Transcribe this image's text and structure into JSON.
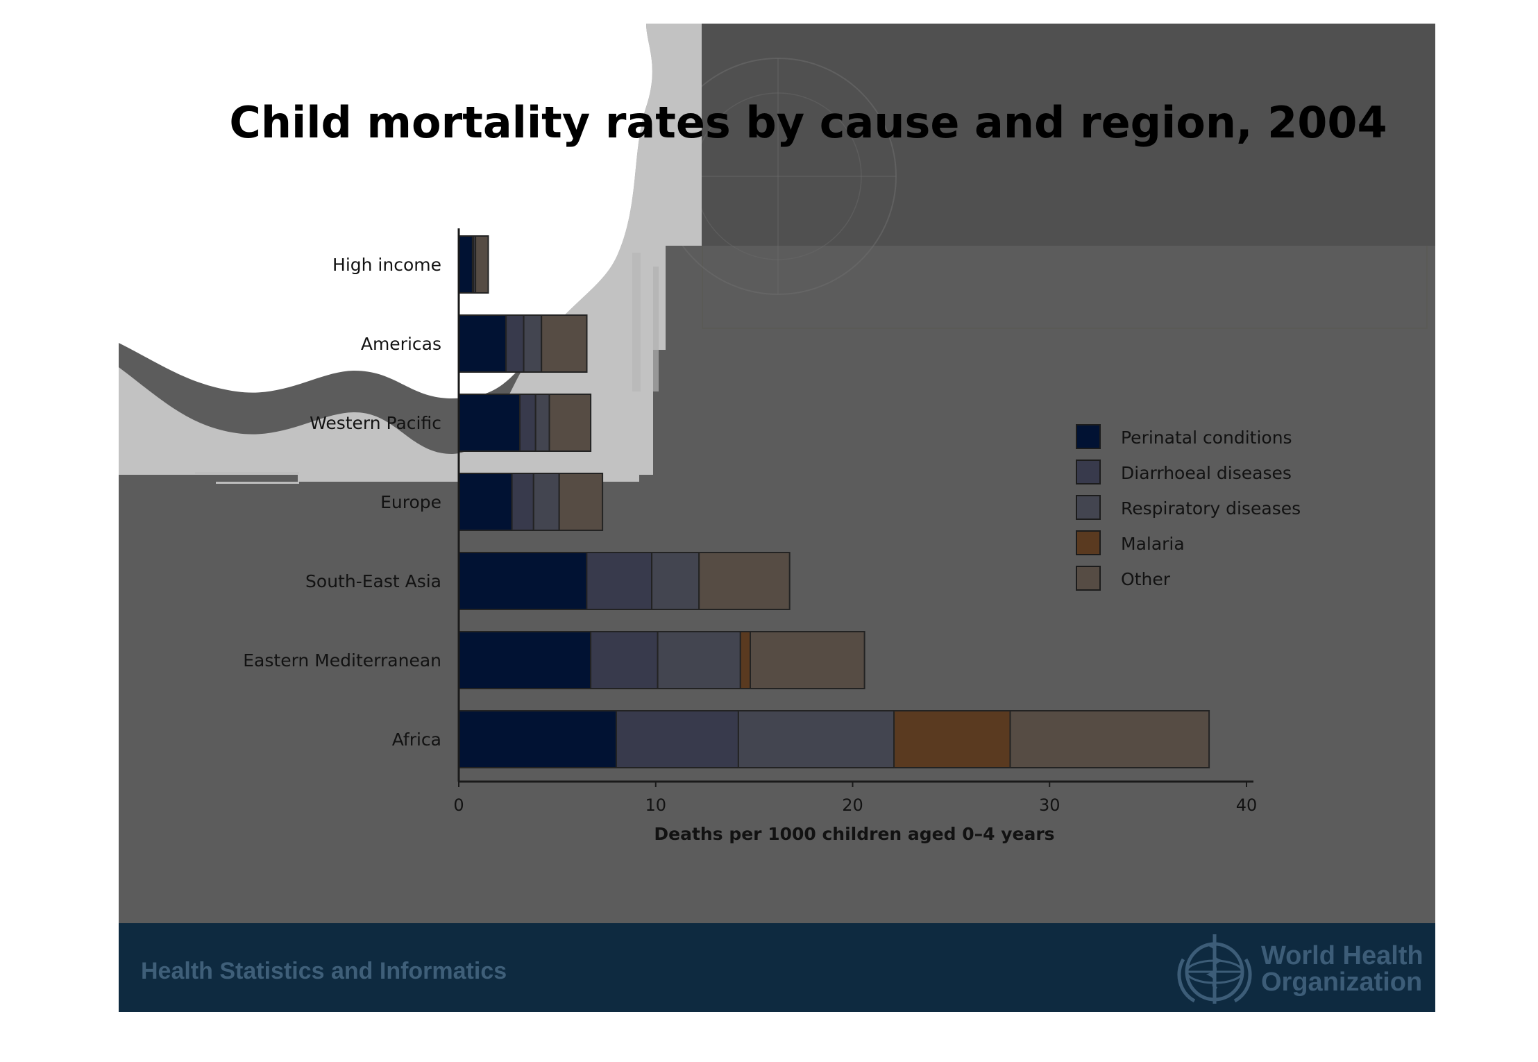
{
  "slide": {
    "title": "Child mortality rates by cause and region, 2004",
    "footer_text": "Health Statistics and Informatics",
    "org_name_line1": "World Health",
    "org_name_line2": "Organization",
    "colors": {
      "background": "#5c5c5c",
      "footer": "#0e2a40",
      "footer_text": "#3f5f79"
    }
  },
  "chart_data": {
    "type": "bar",
    "orientation": "horizontal",
    "stacked": true,
    "categories": [
      "High income",
      "Americas",
      "Western Pacific",
      "Europe",
      "South-East Asia",
      "Eastern Mediterranean",
      "Africa"
    ],
    "series": [
      {
        "name": "Perinatal conditions",
        "color": "#011233",
        "values": [
          0.7,
          2.4,
          3.1,
          2.7,
          6.5,
          6.7,
          8.0
        ]
      },
      {
        "name": "Diarrhoeal diseases",
        "color": "#383a4c",
        "values": [
          0.05,
          0.9,
          0.8,
          1.1,
          3.3,
          3.4,
          6.2
        ]
      },
      {
        "name": "Respiratory diseases",
        "color": "#434550",
        "values": [
          0.1,
          0.9,
          0.7,
          1.3,
          2.4,
          4.2,
          7.9
        ]
      },
      {
        "name": "Malaria",
        "color": "#5a3a20",
        "values": [
          0,
          0,
          0,
          0,
          0,
          0.5,
          5.9
        ]
      },
      {
        "name": "Other",
        "color": "#564c44",
        "values": [
          0.65,
          2.3,
          2.1,
          2.2,
          4.6,
          5.8,
          10.1
        ]
      }
    ],
    "xlabel": "Deaths per 1000 children aged 0–4 years",
    "ylabel": "",
    "xlim": [
      0,
      40
    ],
    "xticks": [
      0,
      10,
      20,
      30,
      40
    ],
    "legend_position": "right",
    "grid": false
  }
}
